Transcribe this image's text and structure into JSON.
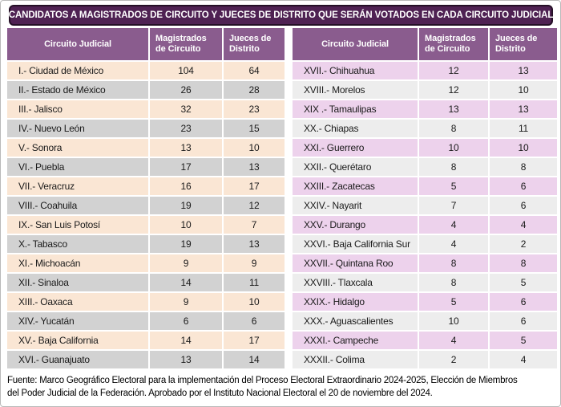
{
  "title": "CANDIDATOS A MAGISTRADOS DE CIRCUITO Y JUECES DE DISTRITO QUE SERÁN VOTADOS EN CADA CIRCUITO JUDICIAL",
  "columns": {
    "circuito": "Circuito Judicial",
    "magistrados": "Magistrados de Circuito",
    "jueces": "Jueces de Distrito"
  },
  "left_table": {
    "rows": [
      {
        "circuito": "I.- Ciudad de México",
        "magistrados": "104",
        "jueces": "64"
      },
      {
        "circuito": "II.- Estado de México",
        "magistrados": "26",
        "jueces": "28"
      },
      {
        "circuito": "III.- Jalisco",
        "magistrados": "32",
        "jueces": "23"
      },
      {
        "circuito": "IV.- Nuevo León",
        "magistrados": "23",
        "jueces": "15"
      },
      {
        "circuito": "V.- Sonora",
        "magistrados": "13",
        "jueces": "10"
      },
      {
        "circuito": "VI.- Puebla",
        "magistrados": "17",
        "jueces": "13"
      },
      {
        "circuito": "VII.- Veracruz",
        "magistrados": "16",
        "jueces": "17"
      },
      {
        "circuito": "VIII.- Coahuila",
        "magistrados": "19",
        "jueces": "12"
      },
      {
        "circuito": "IX.- San Luis Potosí",
        "magistrados": "10",
        "jueces": "7"
      },
      {
        "circuito": "X.- Tabasco",
        "magistrados": "19",
        "jueces": "13"
      },
      {
        "circuito": "XI.- Michoacán",
        "magistrados": "9",
        "jueces": "9"
      },
      {
        "circuito": "XII.- Sinaloa",
        "magistrados": "14",
        "jueces": "11"
      },
      {
        "circuito": "XIII.- Oaxaca",
        "magistrados": "9",
        "jueces": "10"
      },
      {
        "circuito": "XIV.- Yucatán",
        "magistrados": "6",
        "jueces": "6"
      },
      {
        "circuito": "XV.- Baja California",
        "magistrados": "14",
        "jueces": "17"
      },
      {
        "circuito": "XVI.- Guanajuato",
        "magistrados": "13",
        "jueces": "14"
      }
    ]
  },
  "right_table": {
    "rows": [
      {
        "circuito": "XVII.- Chihuahua",
        "magistrados": "12",
        "jueces": "13"
      },
      {
        "circuito": "XVIII.- Morelos",
        "magistrados": "12",
        "jueces": "10"
      },
      {
        "circuito": "XIX .- Tamaulipas",
        "magistrados": "13",
        "jueces": "13"
      },
      {
        "circuito": "XX.- Chiapas",
        "magistrados": "8",
        "jueces": "11"
      },
      {
        "circuito": "XXI.- Guerrero",
        "magistrados": "10",
        "jueces": "10"
      },
      {
        "circuito": "XXII.- Querétaro",
        "magistrados": "8",
        "jueces": "8"
      },
      {
        "circuito": "XXIII.- Zacatecas",
        "magistrados": "5",
        "jueces": "6"
      },
      {
        "circuito": "XXIV.- Nayarit",
        "magistrados": "7",
        "jueces": "6"
      },
      {
        "circuito": "XXV.- Durango",
        "magistrados": "4",
        "jueces": "4"
      },
      {
        "circuito": "XXVI.- Baja California Sur",
        "magistrados": "4",
        "jueces": "2"
      },
      {
        "circuito": "XXVII.- Quintana Roo",
        "magistrados": "8",
        "jueces": "8"
      },
      {
        "circuito": "XXVIII.- Tlaxcala",
        "magistrados": "8",
        "jueces": "5"
      },
      {
        "circuito": "XXIX.- Hidalgo",
        "magistrados": "5",
        "jueces": "6"
      },
      {
        "circuito": "XXX.- Aguascalientes",
        "magistrados": "10",
        "jueces": "6"
      },
      {
        "circuito": "XXXI.- Campeche",
        "magistrados": "4",
        "jueces": "5"
      },
      {
        "circuito": "XXXII.- Colima",
        "magistrados": "2",
        "jueces": "4"
      }
    ]
  },
  "footer": {
    "line1": "Fuente: Marco Geográfico Electoral para la implementación del Proceso Electoral Extraordinario 2024-2025, Elección de Miembros",
    "line2": "del Poder Judicial de la Federación. Aprobado por el Instituto Nacional Electoral el 20 de noviembre del 2024."
  },
  "colors": {
    "title_bg": "#4F2253",
    "title_border": "#251027",
    "header_bg": "#8A5C8E",
    "header_text": "#FFFFFF",
    "left_odd_bg": "#FAE6D4",
    "left_even_bg": "#D2D2D2",
    "right_odd_bg": "#EDD2EC",
    "right_even_bg": "#EDEDED",
    "body_text": "#1A1A1A"
  }
}
